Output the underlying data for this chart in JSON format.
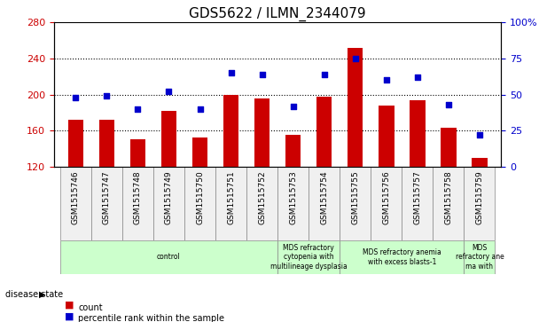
{
  "title": "GDS5622 / ILMN_2344079",
  "samples": [
    "GSM1515746",
    "GSM1515747",
    "GSM1515748",
    "GSM1515749",
    "GSM1515750",
    "GSM1515751",
    "GSM1515752",
    "GSM1515753",
    "GSM1515754",
    "GSM1515755",
    "GSM1515756",
    "GSM1515757",
    "GSM1515758",
    "GSM1515759"
  ],
  "counts": [
    172,
    172,
    150,
    182,
    152,
    200,
    196,
    155,
    198,
    252,
    188,
    194,
    163,
    130
  ],
  "percentile_ranks": [
    48,
    49,
    40,
    52,
    40,
    65,
    64,
    42,
    64,
    75,
    60,
    62,
    43,
    22
  ],
  "ylim_left": [
    120,
    280
  ],
  "ylim_right": [
    0,
    100
  ],
  "yticks_left": [
    120,
    160,
    200,
    240,
    280
  ],
  "yticks_right": [
    0,
    25,
    50,
    75,
    100
  ],
  "bar_color": "#cc0000",
  "dot_color": "#0000cc",
  "bg_color": "#f0f0f0",
  "grid_color": "#000000",
  "disease_groups": [
    {
      "label": "control",
      "start": 0,
      "end": 7,
      "color": "#ccffcc"
    },
    {
      "label": "MDS refractory\ncytopenia with\nmultilineage dysplasia",
      "start": 7,
      "end": 9,
      "color": "#ccffcc"
    },
    {
      "label": "MDS refractory anemia\nwith excess blasts-1",
      "start": 9,
      "end": 13,
      "color": "#ccffcc"
    },
    {
      "label": "MDS\nrefractory ane\nma with",
      "start": 13,
      "end": 14,
      "color": "#ccffcc"
    }
  ]
}
